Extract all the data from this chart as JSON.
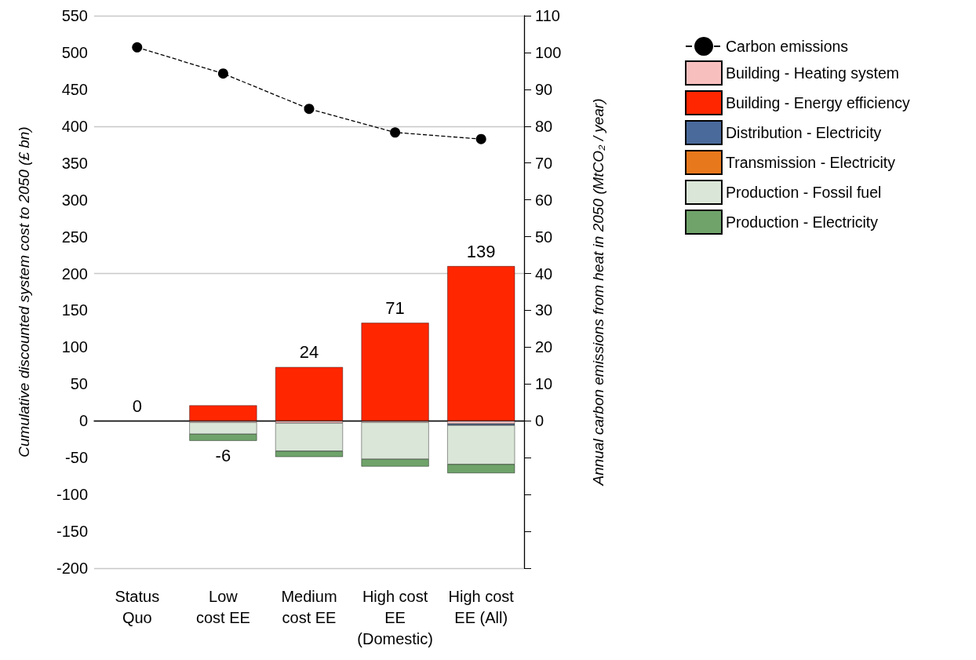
{
  "chart_data": {
    "type": "bar",
    "stacked": true,
    "categories": [
      "Status\nQuo",
      "Low\ncost EE",
      "Medium\ncost EE",
      "High cost\nEE\n(Domestic)",
      "High cost\nEE (All)"
    ],
    "ylabel": "Cumulative discounted system cost to 2050 (£ bn)",
    "y2label": "Annual carbon emissions from heat in 2050 (MtCO₂ / year)",
    "series": [
      {
        "name": "Carbon emissions",
        "type": "line",
        "axis": "y2",
        "color": "#000000",
        "line_style": "dashed",
        "marker": "circle",
        "values": [
          101.4,
          94.3,
          84.7,
          78.3,
          76.5
        ]
      },
      {
        "name": "Building - Heating system",
        "color": "#f8bfbf",
        "values": [
          0,
          -2,
          -3,
          -2,
          -4
        ]
      },
      {
        "name": "Building - Energy efficiency",
        "color": "#ff2600",
        "values": [
          0,
          21,
          73,
          133,
          210
        ]
      },
      {
        "name": "Distribution - Electricity",
        "color": "#4a6a9c",
        "values": [
          0,
          0,
          0,
          0,
          -2
        ]
      },
      {
        "name": "Transmission - Electricity",
        "color": "#e8781c",
        "values": [
          0,
          0,
          0,
          0,
          0
        ]
      },
      {
        "name": "Production - Fossil fuel",
        "color": "#dae6d8",
        "values": [
          0,
          -16,
          -38,
          -50,
          -53
        ]
      },
      {
        "name": "Production - Electricity",
        "color": "#6fa36a",
        "values": [
          0,
          -9,
          -8,
          -10,
          -12
        ]
      }
    ],
    "totals": [
      "0",
      "-6",
      "24",
      "71",
      "139"
    ],
    "ylim": [
      -200,
      550
    ],
    "yticks": [
      -200,
      -150,
      -100,
      -50,
      0,
      50,
      100,
      150,
      200,
      250,
      300,
      350,
      400,
      450,
      500,
      550
    ],
    "y2lim": [
      -40,
      110
    ],
    "y2ticks": [
      {
        "value": -40,
        "label": null
      },
      {
        "value": -30,
        "label": null
      },
      {
        "value": -20,
        "label": null
      },
      {
        "value": -10,
        "label": null
      },
      0,
      10,
      20,
      30,
      40,
      50,
      60,
      70,
      80,
      90,
      100,
      110
    ],
    "grid": "y",
    "legend": "top right"
  }
}
